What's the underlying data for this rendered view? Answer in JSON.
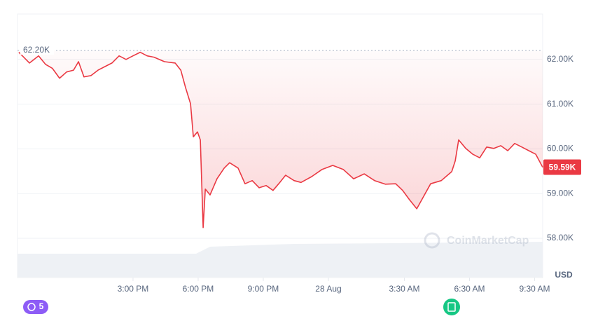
{
  "chart_data": {
    "type": "line",
    "x": [
      9.74,
      10.23,
      10.65,
      10.97,
      11.29,
      11.62,
      11.94,
      12.26,
      12.49,
      12.74,
      13.07,
      13.39,
      13.71,
      14.03,
      14.36,
      14.68,
      15.0,
      15.33,
      15.65,
      15.97,
      16.45,
      16.94,
      17.2,
      17.42,
      17.65,
      17.78,
      17.97,
      18.1,
      18.23,
      18.33,
      18.55,
      18.87,
      19.2,
      19.45,
      19.84,
      20.16,
      20.49,
      20.81,
      21.13,
      21.45,
      21.71,
      22.03,
      22.42,
      22.74,
      23.23,
      23.71,
      24.2,
      24.68,
      25.16,
      25.65,
      26.13,
      26.62,
      27.1,
      27.42,
      27.74,
      28.07,
      28.39,
      28.71,
      29.2,
      29.68,
      29.84,
      30.0,
      30.33,
      30.65,
      30.97,
      31.29,
      31.62,
      31.94,
      32.26,
      32.58,
      32.91,
      33.23,
      33.55,
      33.87
    ],
    "series": [
      {
        "color": "#ea3943",
        "values": [
          62160,
          61920,
          62080,
          61890,
          61800,
          61580,
          61720,
          61760,
          61950,
          61610,
          61640,
          61760,
          61840,
          61920,
          62080,
          62000,
          62080,
          62160,
          62080,
          62050,
          61950,
          61920,
          61760,
          61370,
          61010,
          60270,
          60380,
          60200,
          58240,
          59100,
          58970,
          59330,
          59570,
          59690,
          59570,
          59220,
          59290,
          59130,
          59180,
          59070,
          59220,
          59410,
          59290,
          59250,
          59380,
          59540,
          59630,
          59540,
          59330,
          59440,
          59290,
          59210,
          59220,
          59070,
          58860,
          58660,
          58940,
          59220,
          59290,
          59490,
          59730,
          60200,
          60010,
          59880,
          59800,
          60040,
          60010,
          60070,
          59960,
          60120,
          60040,
          59960,
          59880,
          59590
        ]
      }
    ],
    "last_price_label": "59.59K",
    "reference": {
      "value": 62200,
      "label": "62.20K"
    },
    "xlim": [
      9.68,
      33.87
    ],
    "xticks": [
      {
        "value": 15,
        "label": "3:00 PM"
      },
      {
        "value": 18,
        "label": "6:00 PM"
      },
      {
        "value": 21,
        "label": "9:00 PM"
      },
      {
        "value": 24,
        "label": "28 Aug"
      },
      {
        "value": 27.5,
        "label": "3:30 AM"
      },
      {
        "value": 30.5,
        "label": "6:30 AM"
      },
      {
        "value": 33.5,
        "label": "9:30 AM"
      }
    ],
    "ylim": [
      58000,
      63000
    ],
    "yticks": [
      {
        "value": 58000,
        "label": "58.00K"
      },
      {
        "value": 59000,
        "label": "59.00K"
      },
      {
        "value": 60000,
        "label": "60.00K"
      },
      {
        "value": 61000,
        "label": "61.00K"
      },
      {
        "value": 62000,
        "label": "62.00K"
      }
    ],
    "y_label": "USD",
    "watermark": "CoinMarketCap",
    "history_count": 5,
    "grid": true
  }
}
